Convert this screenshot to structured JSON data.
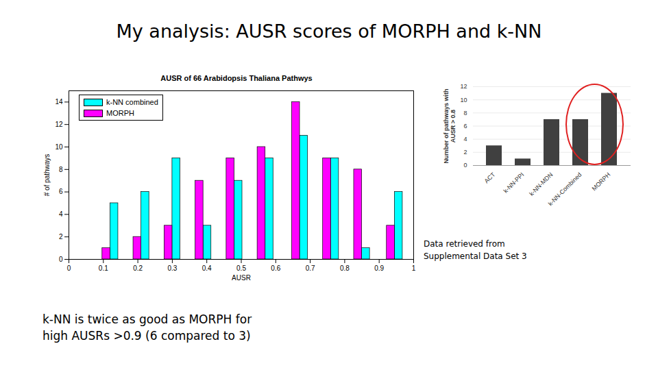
{
  "slide": {
    "title": "My analysis: AUSR scores of MORPH and k-NN",
    "source": "Data retrieved from Supplemental Data Set 3",
    "caption": "k-NN is twice as good as MORPH for high AUSRs >0.9 (6 compared to 3)"
  },
  "chart_data": [
    {
      "type": "bar",
      "title": "AUSR of 66 Arabidopsis Thaliana Pathwys",
      "x_label": "AUSR",
      "y_label": "# of pathways",
      "x": [
        0.12,
        0.21,
        0.3,
        0.39,
        0.48,
        0.57,
        0.67,
        0.76,
        0.85,
        0.945
      ],
      "series": [
        {
          "name": "k-NN combined",
          "color": "#00ffff",
          "values": [
            5,
            6,
            9,
            3,
            7,
            9,
            11,
            9,
            1,
            6
          ]
        },
        {
          "name": "MORPH",
          "color": "#ff00ff",
          "values": [
            1,
            2,
            3,
            7,
            9,
            10,
            14,
            9,
            8,
            3
          ]
        }
      ],
      "xlim": [
        0,
        1
      ],
      "xticks": [
        0,
        0.1,
        0.2,
        0.3,
        0.4,
        0.5,
        0.6,
        0.7,
        0.8,
        0.9,
        1
      ],
      "ylim": [
        0,
        15
      ],
      "yticks": [
        0,
        2,
        4,
        6,
        8,
        10,
        12,
        14
      ],
      "legend": "upper left",
      "grid": false
    },
    {
      "type": "bar",
      "y_label": "Number of pathways with AUSR > 0.8",
      "categories": [
        "ACT",
        "k-NN-PPI",
        "k-NN-MDN",
        "k-NN-Combined",
        "MORPH"
      ],
      "values": [
        3,
        1,
        7,
        7,
        11
      ],
      "color": "#404040",
      "ylim": [
        0,
        12
      ],
      "yticks": [
        0,
        2,
        4,
        6,
        8,
        10,
        12
      ],
      "grid": true
    }
  ]
}
